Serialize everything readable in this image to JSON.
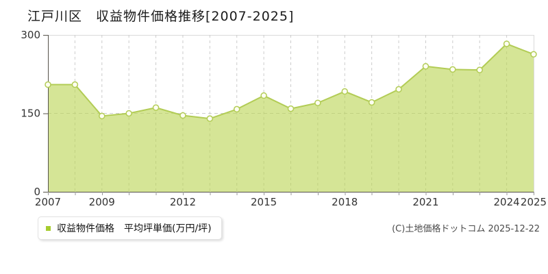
{
  "title": "江戸川区　収益物件価格推移[2007-2025]",
  "legend": {
    "label": "収益物件価格　平均坪単価(万円/坪)",
    "swatch_color": "#a6cc2e"
  },
  "footer": {
    "copyright": "(C)土地価格ドットコム 2025-12-22"
  },
  "chart_data": {
    "type": "area",
    "title": "江戸川区　収益物件価格推移[2007-2025]",
    "x": [
      2007,
      2008,
      2009,
      2010,
      2011,
      2012,
      2013,
      2014,
      2015,
      2016,
      2017,
      2018,
      2019,
      2020,
      2021,
      2022,
      2023,
      2024,
      2025
    ],
    "series": [
      {
        "name": "収益物件価格 平均坪単価",
        "values": [
          205,
          205,
          145,
          150,
          161,
          146,
          140,
          158,
          184,
          159,
          170,
          192,
          171,
          196,
          240,
          234,
          233,
          283,
          263
        ]
      }
    ],
    "xlabel": "",
    "ylabel": "平均坪単価(万円/坪)",
    "ylim": [
      0,
      300
    ],
    "yticks": [
      0,
      150,
      300
    ],
    "xtick_labels": [
      2007,
      2009,
      2012,
      2015,
      2018,
      2021,
      2024,
      2025
    ],
    "grid": true,
    "legend_position": "bottom-left",
    "colors": {
      "area_fill": "rgba(185, 212, 80, 0.6)",
      "line": "#b2cc55",
      "marker_fill": "#fdfdf2",
      "grid": "#cccccc",
      "border": "#d9d9d9",
      "axis": "#55524a",
      "tick": "#999999",
      "text": "#333333"
    }
  }
}
